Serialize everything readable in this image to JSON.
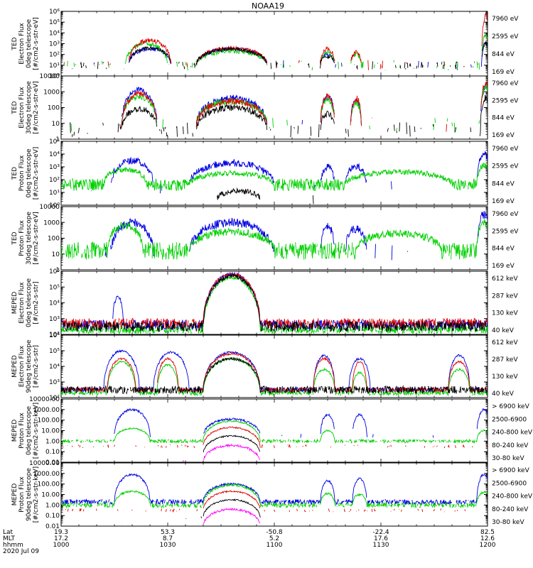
{
  "title": "NOAA19",
  "footer": {
    "row_labels": [
      "Lat",
      "MLT",
      "hhmm",
      "2020 Jul 09"
    ],
    "ticks": [
      {
        "lat": "19.3",
        "mlt": "17.2",
        "hhmm": "1000",
        "minute": 0
      },
      {
        "lat": "53.3",
        "mlt": "8.7",
        "hhmm": "1030",
        "minute": 30
      },
      {
        "lat": "-50.8",
        "mlt": "5.2",
        "hhmm": "1100",
        "minute": 60
      },
      {
        "lat": "-22.4",
        "mlt": "17.6",
        "hhmm": "1130",
        "minute": 90
      },
      {
        "lat": "82.5",
        "mlt": "12.6",
        "hhmm": "1200",
        "minute": 120
      }
    ]
  },
  "colors": {
    "black": "#000000",
    "red": "#e00000",
    "green": "#00d000",
    "blue": "#0000e0",
    "magenta": "#ff00ff"
  },
  "chart_data": [
    {
      "type": "line",
      "ylabel": [
        "TED",
        "Electron Flux",
        "0deg telescope",
        "[#/cm2-s-str-eV]"
      ],
      "yscale": "log",
      "ylim": [
        1,
        1000000
      ],
      "yticks": [
        "10⁰",
        "10¹",
        "10²",
        "10³",
        "10⁴",
        "10⁵",
        "10⁶"
      ],
      "xlim": [
        0,
        120
      ],
      "series": [
        {
          "name": "7960 eV",
          "color": "black",
          "base": 1,
          "noise": 0.25,
          "density": 0.3,
          "bumps": [
            [
              25,
              6,
              1.6
            ],
            [
              48,
              10,
              1.5
            ],
            [
              75,
              2,
              0.8
            ],
            [
              119.5,
              1.2,
              2.0
            ]
          ]
        },
        {
          "name": "2595 eV",
          "color": "red",
          "base": 1,
          "noise": 0.3,
          "density": 0.15,
          "bumps": [
            [
              25,
              6,
              2.3
            ],
            [
              48,
              10,
              1.6
            ],
            [
              75,
              2,
              1.5
            ],
            [
              83,
              1.5,
              1.2
            ],
            [
              119.5,
              1.2,
              4.6
            ]
          ]
        },
        {
          "name": "844 eV",
          "color": "green",
          "base": 1,
          "noise": 0.3,
          "density": 0.25,
          "bumps": [
            [
              24,
              6,
              2.0
            ],
            [
              48,
              10,
              1.3
            ],
            [
              75,
              2,
              1.2
            ],
            [
              83,
              1.5,
              1.0
            ],
            [
              119.5,
              1.2,
              2.8
            ]
          ]
        },
        {
          "name": "169 eV",
          "color": "blue",
          "base": 1,
          "noise": 0.3,
          "density": 0.1,
          "bumps": [
            [
              25,
              6,
              1.5
            ],
            [
              48,
              10,
              1.5
            ],
            [
              75,
              2,
              1.0
            ],
            [
              119.5,
              1.2,
              2.0
            ]
          ]
        }
      ]
    },
    {
      "type": "line",
      "ylabel": [
        "TED",
        "Electron Flux",
        "30deg telescope",
        "[#/cm2-s-str-eV]"
      ],
      "yscale": "log",
      "ylim": [
        1,
        10000
      ],
      "yticks": [
        "1",
        "10",
        "100",
        "1000",
        "10000"
      ],
      "xlim": [
        0,
        120
      ],
      "series": [
        {
          "name": "7960 eV",
          "color": "black",
          "base": 0.6,
          "noise": 0.3,
          "density": 0.25,
          "bumps": [
            [
              22,
              5,
              1.3
            ],
            [
              48,
              10,
              1.4
            ],
            [
              75,
              2,
              1.0
            ],
            [
              119.5,
              1.5,
              2.0
            ]
          ]
        },
        {
          "name": "2595 eV",
          "color": "red",
          "base": 0.8,
          "noise": 0.3,
          "density": 0.1,
          "bumps": [
            [
              22,
              5,
              2.1
            ],
            [
              48,
              10,
              1.6
            ],
            [
              75,
              2,
              2.0
            ],
            [
              83,
              1.5,
              1.8
            ],
            [
              119.5,
              1.5,
              2.8
            ]
          ]
        },
        {
          "name": "844 eV",
          "color": "green",
          "base": 0.9,
          "noise": 0.3,
          "density": 0.15,
          "bumps": [
            [
              22,
              5,
              1.8
            ],
            [
              48,
              10,
              1.5
            ],
            [
              75,
              2,
              1.6
            ],
            [
              83,
              1.5,
              1.4
            ],
            [
              119.5,
              1.5,
              2.4
            ]
          ]
        },
        {
          "name": "169 eV",
          "color": "blue",
          "base": 0.9,
          "noise": 0.3,
          "density": 0.1,
          "bumps": [
            [
              22,
              5,
              2.2
            ],
            [
              48,
              10,
              1.7
            ],
            [
              75,
              2,
              1.8
            ],
            [
              83,
              1.5,
              1.5
            ],
            [
              119.5,
              1.5,
              2.4
            ]
          ]
        }
      ]
    },
    {
      "type": "line",
      "ylabel": [
        "TED",
        "Proton Flux",
        "0deg telescope",
        "[#/cm2-s-str-eV]"
      ],
      "yscale": "log",
      "ylim": [
        1,
        100000
      ],
      "yticks": [
        "10⁰",
        "10¹",
        "10²",
        "10³",
        "10⁴",
        "10⁵"
      ],
      "xlim": [
        0,
        120
      ],
      "series": [
        {
          "name": "7960 eV",
          "color": "black",
          "base": 0.5,
          "noise": 0.3,
          "density": 0.04,
          "bumps": [
            [
              50,
              6,
              0.6
            ]
          ]
        },
        {
          "name": "2595 eV",
          "color": "red",
          "base": 0.5,
          "noise": 0.3,
          "density": 0.04,
          "bumps": []
        },
        {
          "name": "844 eV",
          "color": "green",
          "base": 1.6,
          "noise": 0.3,
          "density": 0.95,
          "bumps": [
            [
              18,
              6,
              1.2
            ],
            [
              48,
              12,
              0.9
            ],
            [
              95,
              15,
              1.0
            ],
            [
              119,
              2,
              1.5
            ]
          ]
        },
        {
          "name": "169 eV",
          "color": "blue",
          "base": 1.5,
          "noise": 0.4,
          "density": 0.1,
          "bumps": [
            [
              20,
              6,
              2.0
            ],
            [
              48,
              12,
              1.8
            ],
            [
              75,
              2,
              1.5
            ],
            [
              83,
              3,
              1.5
            ],
            [
              119,
              2,
              2.5
            ]
          ]
        }
      ]
    },
    {
      "type": "line",
      "ylabel": [
        "TED",
        "Proton Flux",
        "30deg telescope",
        "[#/cm2-s-str-eV]"
      ],
      "yscale": "log",
      "ylim": [
        1,
        10000
      ],
      "yticks": [
        "1",
        "10",
        "100",
        "1000",
        "10000"
      ],
      "xlim": [
        0,
        120
      ],
      "series": [
        {
          "name": "7960 eV",
          "color": "black",
          "base": 0.5,
          "noise": 0.3,
          "density": 0.03,
          "bumps": []
        },
        {
          "name": "2595 eV",
          "color": "red",
          "base": 0.5,
          "noise": 0.3,
          "density": 0.02,
          "bumps": []
        },
        {
          "name": "844 eV",
          "color": "green",
          "base": 1.2,
          "noise": 0.35,
          "density": 0.85,
          "bumps": [
            [
              18,
              5,
              1.6
            ],
            [
              48,
              12,
              1.2
            ],
            [
              95,
              12,
              1.1
            ],
            [
              119,
              2,
              1.8
            ]
          ]
        },
        {
          "name": "169 eV",
          "color": "blue",
          "base": 1.0,
          "noise": 0.4,
          "density": 0.1,
          "bumps": [
            [
              20,
              6,
              2.0
            ],
            [
              48,
              12,
              2.0
            ],
            [
              75,
              2,
              1.7
            ],
            [
              83,
              3,
              1.6
            ],
            [
              119,
              2,
              2.5
            ]
          ]
        }
      ]
    },
    {
      "type": "line",
      "ylabel": [
        "MEPED",
        "Electron Flux",
        "0deg telescope",
        "[#/cm2-s-str]"
      ],
      "yscale": "log",
      "ylim": [
        100,
        1000000
      ],
      "yticks": [
        "10²",
        "10³",
        "10⁴",
        "10⁵",
        "10⁶"
      ],
      "xlim": [
        0,
        120
      ],
      "series": [
        {
          "name": "612 keV",
          "color": "black",
          "base": 2.5,
          "noise": 0.2,
          "density": 0.9,
          "bumps": [
            [
              48,
              8,
              3.2
            ]
          ]
        },
        {
          "name": "287 keV",
          "color": "red",
          "base": 2.7,
          "noise": 0.2,
          "density": 0.9,
          "bumps": [
            [
              48,
              8,
              3.1
            ]
          ]
        },
        {
          "name": "130 keV",
          "color": "green",
          "base": 2.3,
          "noise": 0.15,
          "density": 0.9,
          "bumps": [
            [
              48,
              8,
              3.3
            ]
          ]
        },
        {
          "name": "40 keV",
          "color": "blue",
          "base": 2.6,
          "noise": 0.2,
          "density": 0.9,
          "bumps": [
            [
              48,
              8,
              3.2
            ],
            [
              16,
              1.5,
              1.8
            ]
          ]
        }
      ]
    },
    {
      "type": "line",
      "ylabel": [
        "MEPED",
        "Electron Flux",
        "90deg telescope",
        "[#/cm2-s-str]"
      ],
      "yscale": "log",
      "ylim": [
        100,
        1000000
      ],
      "yticks": [
        "10²",
        "10³",
        "10⁴",
        "10⁵",
        "10⁶"
      ],
      "xlim": [
        0,
        120
      ],
      "series": [
        {
          "name": "612 keV",
          "color": "black",
          "base": 2.5,
          "noise": 0.15,
          "density": 0.9,
          "bumps": [
            [
              48,
              8,
              2.0
            ]
          ]
        },
        {
          "name": "287 keV",
          "color": "red",
          "base": 2.5,
          "noise": 0.1,
          "density": 0.9,
          "bumps": [
            [
              17,
              4,
              2.0
            ],
            [
              30,
              3,
              2.0
            ],
            [
              48,
              8,
              2.3
            ],
            [
              74,
              3,
              2.0
            ],
            [
              84,
              2,
              1.8
            ],
            [
              112,
              3,
              1.8
            ]
          ]
        },
        {
          "name": "130 keV",
          "color": "green",
          "base": 2.3,
          "noise": 0.1,
          "density": 0.9,
          "bumps": [
            [
              17,
              4,
              2.0
            ],
            [
              30,
              3,
              1.8
            ],
            [
              48,
              8,
              2.2
            ],
            [
              74,
              3,
              1.5
            ],
            [
              84,
              2,
              1.3
            ],
            [
              112,
              3,
              1.5
            ]
          ]
        },
        {
          "name": "40 keV",
          "color": "blue",
          "base": 2.5,
          "noise": 0.1,
          "density": 0.9,
          "bumps": [
            [
              17,
              5,
              2.5
            ],
            [
              31,
              5,
              2.4
            ],
            [
              48,
              8,
              2.4
            ],
            [
              74,
              3,
              2.2
            ],
            [
              84,
              3,
              2.0
            ],
            [
              112,
              3,
              2.2
            ]
          ]
        }
      ]
    },
    {
      "type": "line",
      "ylabel": [
        "MEPED",
        "Proton Flux",
        "0deg telescope",
        "[#/cm2-s-str-keV]"
      ],
      "yscale": "log",
      "ylim": [
        0.01,
        10000
      ],
      "yticks": [
        "0.01",
        "0.10",
        "1.00",
        "10.00",
        "100.00",
        "1000.00",
        "10000.00"
      ],
      "xlim": [
        0,
        120
      ],
      "series": [
        {
          "name": "> 6900 keV",
          "color": "magenta",
          "base": -2.0,
          "noise": 0.15,
          "density": 0.05,
          "bumps": [
            [
              48,
              8,
              1.6
            ]
          ]
        },
        {
          "name": "2500-6900",
          "color": "black",
          "base": -1.2,
          "noise": 0.1,
          "density": 0.05,
          "bumps": [
            [
              48,
              8,
              1.7
            ]
          ]
        },
        {
          "name": "240-800 keV",
          "color": "red",
          "base": -0.5,
          "noise": 0.1,
          "density": 0.3,
          "bumps": [
            [
              48,
              8,
              1.8
            ]
          ]
        },
        {
          "name": "80-240 keV",
          "color": "green",
          "base": 0.0,
          "noise": 0.1,
          "density": 0.85,
          "bumps": [
            [
              20,
              5,
              1.2
            ],
            [
              48,
              8,
              1.9
            ],
            [
              75,
              2,
              1.0
            ],
            [
              119,
              2,
              1.0
            ]
          ]
        },
        {
          "name": "30-80 keV",
          "color": "blue",
          "base": 0.5,
          "noise": 0.15,
          "density": 0.1,
          "bumps": [
            [
              20,
              5,
              2.5
            ],
            [
              48,
              8,
              1.6
            ],
            [
              75,
              2,
              2.0
            ],
            [
              84,
              2,
              2.0
            ],
            [
              119,
              2,
              2.5
            ]
          ]
        }
      ]
    },
    {
      "type": "line",
      "ylabel": [
        "MEPED",
        "Proton Flux",
        "90deg telescope",
        "[#/cm2-s-str-keV]"
      ],
      "yscale": "log",
      "ylim": [
        0.01,
        10000
      ],
      "yticks": [
        "0.01",
        "0.10",
        "1.00",
        "10.00",
        "100.00",
        "1000.00",
        "10000.00"
      ],
      "xlim": [
        0,
        120
      ],
      "series": [
        {
          "name": "> 6900 keV",
          "color": "magenta",
          "base": -2.0,
          "noise": 0.15,
          "density": 0.05,
          "bumps": [
            [
              48,
              8,
              1.6
            ]
          ]
        },
        {
          "name": "2500-6900",
          "color": "black",
          "base": -1.2,
          "noise": 0.1,
          "density": 0.05,
          "bumps": [
            [
              48,
              8,
              1.7
            ]
          ]
        },
        {
          "name": "240-800 keV",
          "color": "red",
          "base": -0.5,
          "noise": 0.1,
          "density": 0.3,
          "bumps": [
            [
              48,
              8,
              1.8
            ]
          ]
        },
        {
          "name": "80-240 keV",
          "color": "green",
          "base": 0.0,
          "noise": 0.15,
          "density": 0.85,
          "bumps": [
            [
              20,
              5,
              1.3
            ],
            [
              48,
              8,
              1.9
            ],
            [
              75,
              2,
              1.1
            ],
            [
              84,
              2,
              1.0
            ],
            [
              119,
              2,
              1.2
            ]
          ]
        },
        {
          "name": "30-80 keV",
          "color": "blue",
          "base": 0.3,
          "noise": 0.15,
          "density": 0.9,
          "bumps": [
            [
              20,
              5,
              2.6
            ],
            [
              48,
              8,
              1.7
            ],
            [
              75,
              2,
              2.0
            ],
            [
              84,
              2,
              2.2
            ],
            [
              119,
              2,
              2.6
            ]
          ]
        }
      ]
    }
  ]
}
